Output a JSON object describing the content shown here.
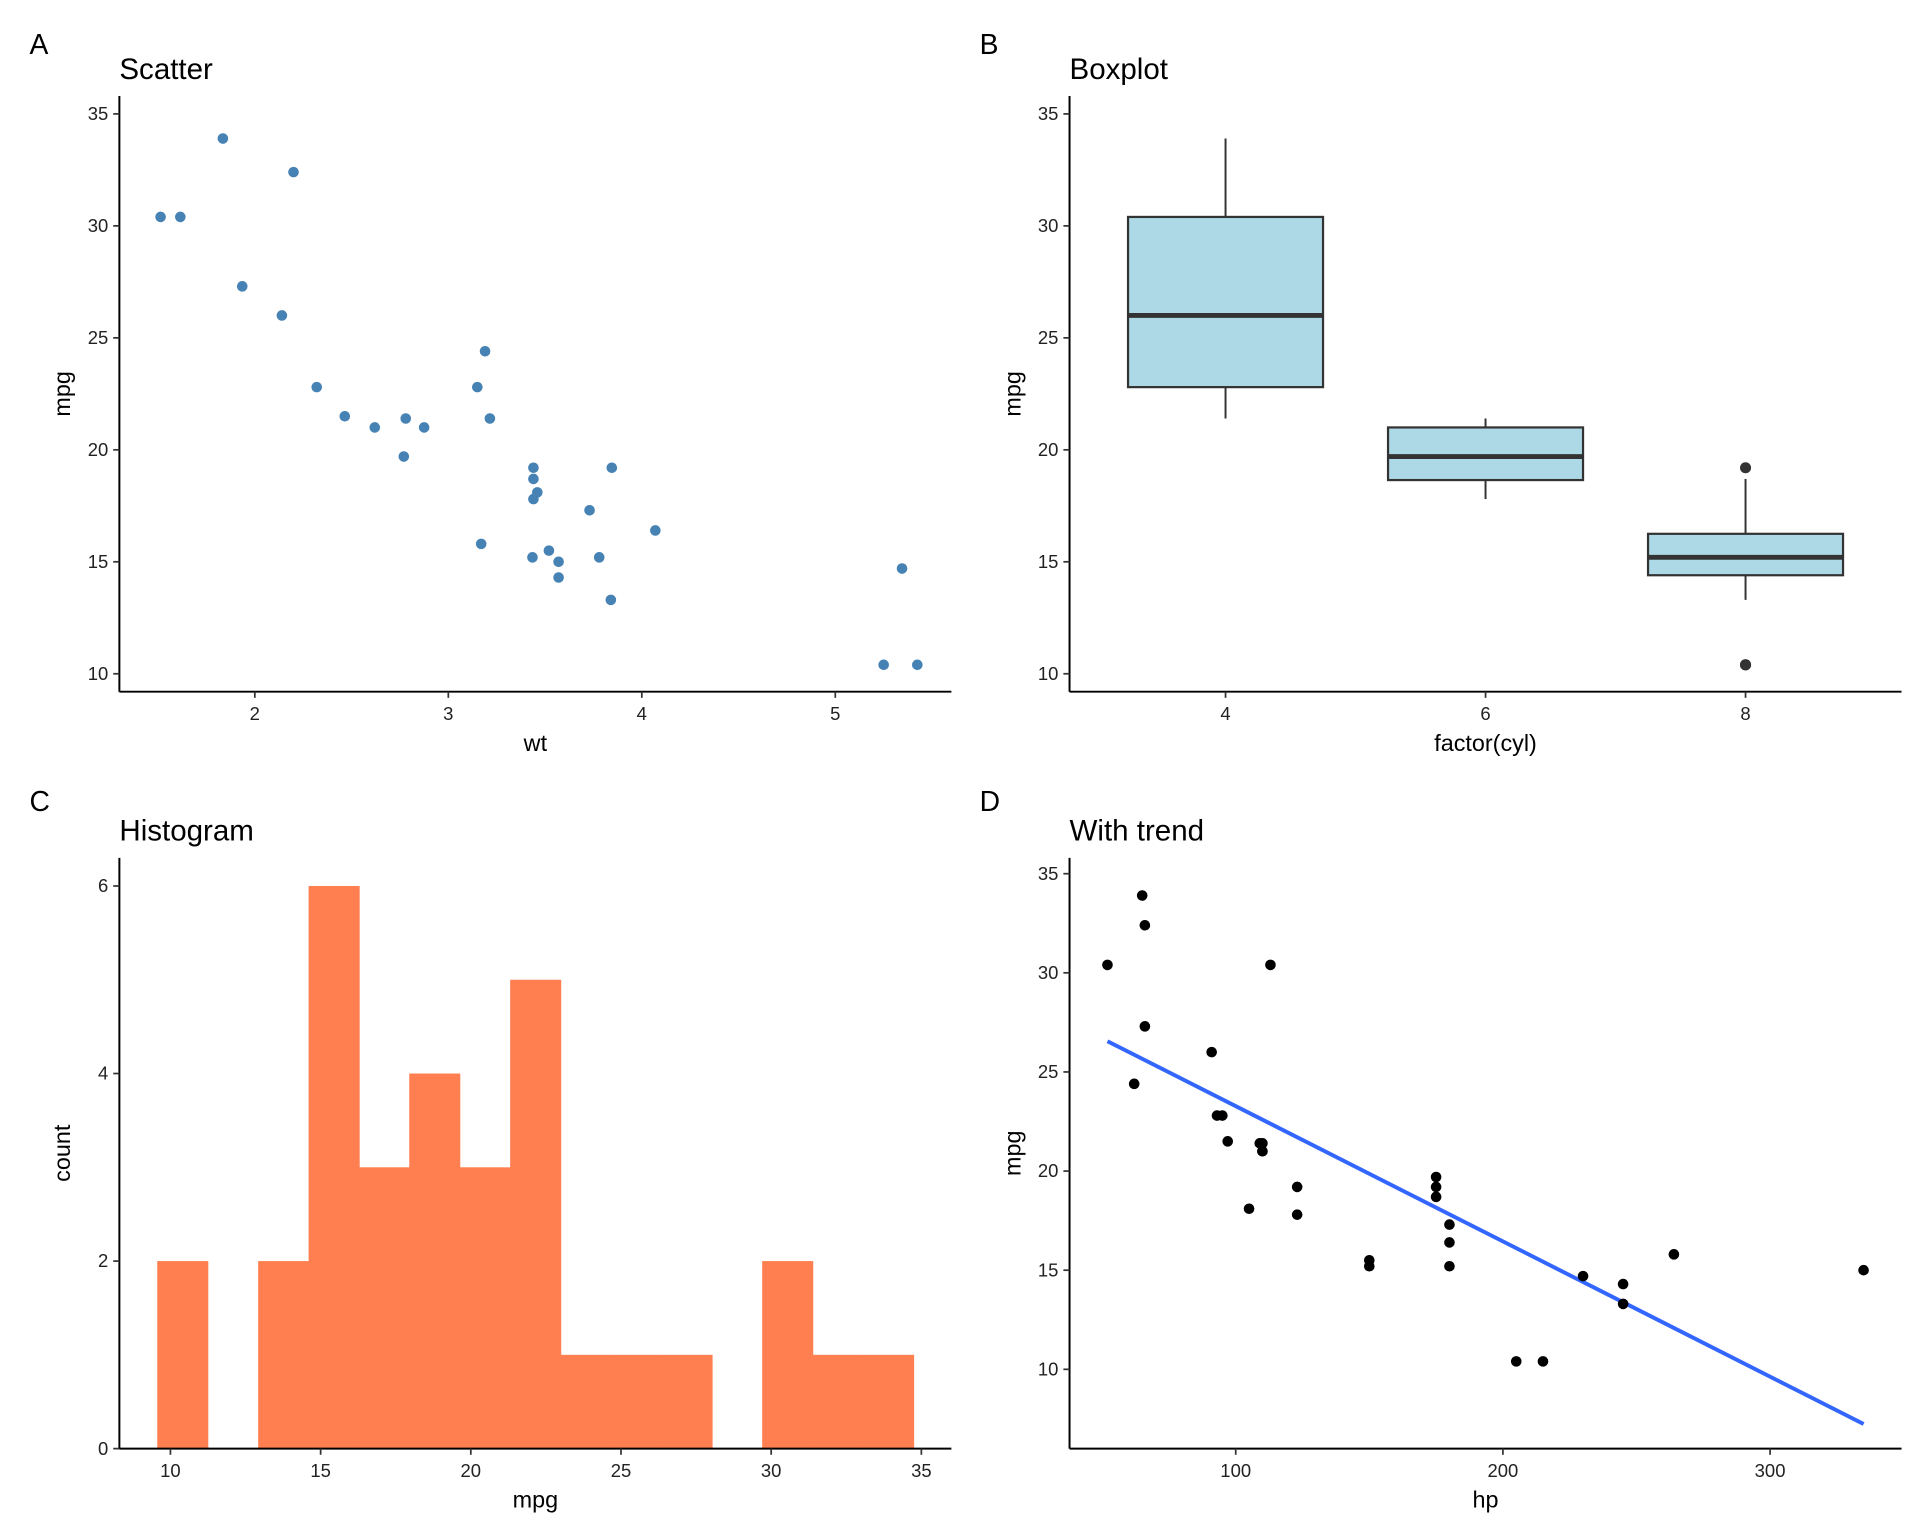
{
  "chart_data": [
    {
      "tag": "A",
      "type": "scatter",
      "title": "Scatter",
      "xlabel": "wt",
      "ylabel": "mpg",
      "xlim": [
        1.3,
        5.6
      ],
      "ylim": [
        9.2,
        35.8
      ],
      "xticks": [
        2,
        3,
        4,
        5
      ],
      "yticks": [
        10,
        15,
        20,
        25,
        30,
        35
      ],
      "point_color": "#4682B4",
      "x": [
        2.62,
        2.875,
        2.32,
        3.215,
        3.44,
        3.46,
        3.57,
        3.19,
        3.15,
        3.44,
        3.44,
        4.07,
        3.73,
        3.78,
        5.25,
        5.424,
        5.345,
        2.2,
        1.615,
        1.835,
        2.465,
        3.52,
        3.435,
        3.84,
        3.845,
        1.935,
        2.14,
        1.513,
        3.17,
        2.77,
        3.57,
        2.78
      ],
      "y": [
        21,
        21,
        22.8,
        21.4,
        18.7,
        18.1,
        14.3,
        24.4,
        22.8,
        19.2,
        17.8,
        16.4,
        17.3,
        15.2,
        10.4,
        10.4,
        14.7,
        32.4,
        30.4,
        33.9,
        21.5,
        15.5,
        15.2,
        13.3,
        19.2,
        27.3,
        26,
        30.4,
        15.8,
        19.7,
        15,
        21.4
      ]
    },
    {
      "tag": "B",
      "type": "box",
      "title": "Boxplot",
      "xlabel": "factor(cyl)",
      "ylabel": "mpg",
      "ylim": [
        9.2,
        35.8
      ],
      "yticks": [
        10,
        15,
        20,
        25,
        30,
        35
      ],
      "categories": [
        "4",
        "6",
        "8"
      ],
      "fill_color": "#ADD8E6",
      "boxes": [
        {
          "lower": 21.4,
          "q1": 22.8,
          "median": 26.0,
          "q3": 30.4,
          "upper": 33.9,
          "outliers": []
        },
        {
          "lower": 17.8,
          "q1": 18.65,
          "median": 19.7,
          "q3": 21.0,
          "upper": 21.4,
          "outliers": []
        },
        {
          "lower": 13.3,
          "q1": 14.4,
          "median": 15.2,
          "q3": 16.25,
          "upper": 18.7,
          "outliers": [
            10.4,
            10.4,
            19.2
          ]
        }
      ]
    },
    {
      "tag": "C",
      "type": "bar",
      "title": "Histogram",
      "xlabel": "mpg",
      "ylabel": "count",
      "xlim": [
        8.3,
        36.0
      ],
      "ylim": [
        0,
        6.3
      ],
      "xticks": [
        10,
        15,
        20,
        25,
        30,
        35
      ],
      "yticks": [
        0,
        2,
        4,
        6
      ],
      "bar_color": "#FF7F50",
      "bin_centers": [
        10.4,
        12.08,
        13.76,
        15.44,
        17.11,
        18.79,
        20.47,
        22.15,
        23.83,
        25.51,
        27.19,
        28.86,
        30.54,
        32.22,
        33.9
      ],
      "bin_width": 1.679,
      "counts": [
        2,
        0,
        2,
        6,
        3,
        4,
        3,
        5,
        1,
        1,
        1,
        0,
        2,
        1,
        1
      ]
    },
    {
      "tag": "D",
      "type": "scatter",
      "title": "With trend",
      "xlabel": "hp",
      "ylabel": "mpg",
      "xlim": [
        37.8,
        349.2
      ],
      "ylim": [
        6.0,
        35.8
      ],
      "xticks": [
        100,
        200,
        300
      ],
      "yticks": [
        10,
        15,
        20,
        25,
        30,
        35
      ],
      "point_color": "#000000",
      "line_color": "#3366FF",
      "x": [
        110,
        110,
        93,
        110,
        175,
        105,
        245,
        62,
        95,
        123,
        123,
        180,
        180,
        180,
        205,
        215,
        230,
        66,
        52,
        65,
        97,
        150,
        150,
        245,
        175,
        66,
        91,
        113,
        264,
        175,
        335,
        109
      ],
      "y": [
        21,
        21,
        22.8,
        21.4,
        18.7,
        18.1,
        14.3,
        24.4,
        22.8,
        19.2,
        17.8,
        16.4,
        17.3,
        15.2,
        10.4,
        10.4,
        14.7,
        32.4,
        30.4,
        33.9,
        21.5,
        15.5,
        15.2,
        13.3,
        19.2,
        27.3,
        26,
        30.4,
        15.8,
        19.7,
        15,
        21.4
      ],
      "trend": {
        "intercept": 30.0989,
        "slope": -0.06823,
        "x_range": [
          52,
          335
        ]
      }
    }
  ]
}
